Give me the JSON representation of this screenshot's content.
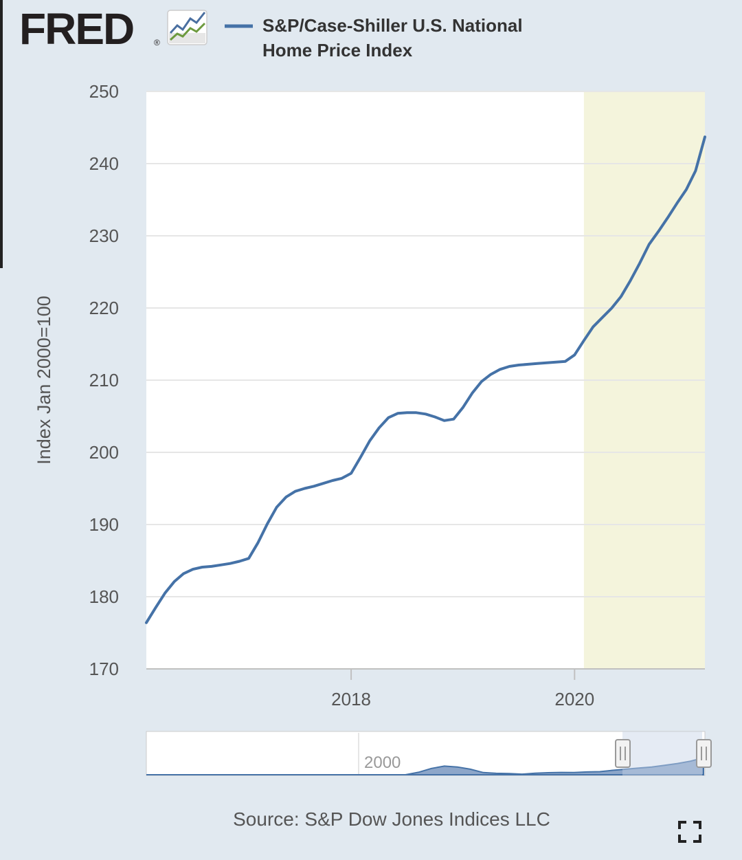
{
  "logo": {
    "text": "FRED",
    "mark": "®"
  },
  "icons": {
    "logo_graph": "line-graph-icon",
    "fullscreen": "fullscreen-icon",
    "handle": "double-bar-grip-icon"
  },
  "colors": {
    "background": "#e1e9f0",
    "plot_background": "#ffffff",
    "series": "#4572a7",
    "recession_shading": "#f4f4dc",
    "navigator_fill": "#8da6c9",
    "navigator_selected": "#c5d2e6"
  },
  "source": {
    "text": "Source: S&P Dow Jones Indices LLC"
  },
  "navigator": {
    "label": "2000",
    "selected_range": [
      "2016-03",
      "2021-03"
    ]
  },
  "chart_data": {
    "type": "line",
    "title": "",
    "ylabel": "Index Jan 2000=100",
    "xlabel": "",
    "ylim": [
      170,
      250
    ],
    "yticks": [
      170,
      180,
      190,
      200,
      210,
      220,
      230,
      240,
      250
    ],
    "xlim": [
      "2016-03",
      "2021-03"
    ],
    "xticks": [
      {
        "label": "2018",
        "date": "2018-01"
      },
      {
        "label": "2020",
        "date": "2020-01"
      }
    ],
    "grid": true,
    "legend": "top",
    "recession_shading": {
      "start": "2020-02",
      "end": "2021-03"
    },
    "series": [
      {
        "name": "S&P/Case-Shiller U.S. National Home Price Index",
        "legend_lines": [
          "S&P/Case-Shiller U.S. National",
          "Home Price Index"
        ],
        "x": [
          "2016-03",
          "2016-04",
          "2016-05",
          "2016-06",
          "2016-07",
          "2016-08",
          "2016-09",
          "2016-10",
          "2016-11",
          "2016-12",
          "2017-01",
          "2017-02",
          "2017-03",
          "2017-04",
          "2017-05",
          "2017-06",
          "2017-07",
          "2017-08",
          "2017-09",
          "2017-10",
          "2017-11",
          "2017-12",
          "2018-01",
          "2018-02",
          "2018-03",
          "2018-04",
          "2018-05",
          "2018-06",
          "2018-07",
          "2018-08",
          "2018-09",
          "2018-10",
          "2018-11",
          "2018-12",
          "2019-01",
          "2019-02",
          "2019-03",
          "2019-04",
          "2019-05",
          "2019-06",
          "2019-07",
          "2019-08",
          "2019-09",
          "2019-10",
          "2019-11",
          "2019-12",
          "2020-01",
          "2020-02",
          "2020-03",
          "2020-04",
          "2020-05",
          "2020-06",
          "2020-07",
          "2020-08",
          "2020-09",
          "2020-10",
          "2020-11",
          "2020-12",
          "2021-01",
          "2021-02",
          "2021-03"
        ],
        "values": [
          176.4,
          178.5,
          180.5,
          182.1,
          183.2,
          183.8,
          184.1,
          184.2,
          184.4,
          184.6,
          184.9,
          185.3,
          187.5,
          190.1,
          192.4,
          193.8,
          194.6,
          195.0,
          195.3,
          195.7,
          196.1,
          196.4,
          197.1,
          199.3,
          201.6,
          203.4,
          204.8,
          205.4,
          205.5,
          205.5,
          205.3,
          204.9,
          204.4,
          204.6,
          206.2,
          208.2,
          209.8,
          210.8,
          211.5,
          211.9,
          212.1,
          212.2,
          212.3,
          212.4,
          212.5,
          212.6,
          213.5,
          215.5,
          217.4,
          218.7,
          220.0,
          221.6,
          223.8,
          226.2,
          228.8,
          230.6,
          232.5,
          234.5,
          236.4,
          239.0,
          243.7
        ]
      }
    ],
    "navigator_series": {
      "x_start": 1987,
      "x_end": 2021.17,
      "values": [
        63,
        66,
        69,
        72,
        74,
        75,
        76,
        77,
        78,
        79,
        80,
        82,
        84,
        86,
        88,
        92,
        97,
        104,
        113,
        122,
        131,
        150,
        175,
        190,
        184,
        170,
        148,
        143,
        142,
        138,
        144,
        147,
        149,
        148,
        152,
        154,
        163,
        170,
        177,
        184,
        195,
        207,
        222,
        244
      ]
    }
  }
}
